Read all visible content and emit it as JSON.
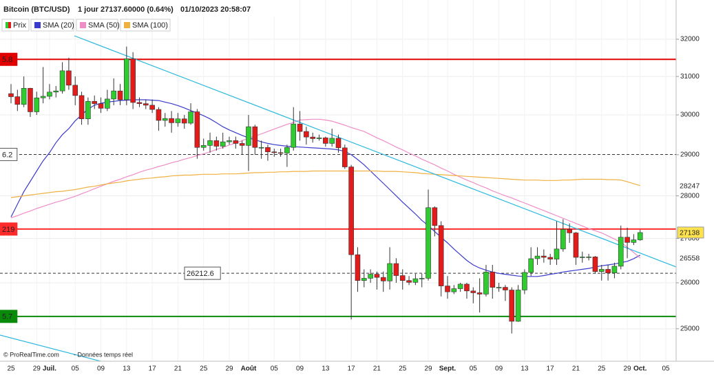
{
  "chart_data": {
    "type": "candlestick",
    "title": "Bitcoin (BTC/USD)",
    "period": "1 jour",
    "last": "27137.60000 (0.64%)",
    "datetime": "01/10/2023 20:58:07",
    "price_name": "Prix",
    "up_color": "#2ecc2e",
    "down_color": "#e21b1b",
    "categories": [
      "25",
      null,
      null,
      null,
      "29",
      null,
      "Juil.",
      null,
      null,
      null,
      "05",
      null,
      null,
      null,
      "09",
      null,
      null,
      null,
      "13",
      null,
      null,
      null,
      "17",
      null,
      null,
      null,
      "21",
      null,
      null,
      null,
      "25",
      null,
      null,
      null,
      "29",
      null,
      null,
      "Août",
      null,
      null,
      null,
      "05",
      null,
      null,
      null,
      "09",
      null,
      null,
      null,
      "13",
      null,
      null,
      null,
      "17",
      null,
      null,
      null,
      "21",
      null,
      null,
      null,
      "25",
      null,
      null,
      null,
      "29",
      null,
      null,
      "Sept.",
      null,
      null,
      null,
      "05",
      null,
      null,
      null,
      "09",
      null,
      null,
      null,
      "13",
      null,
      null,
      null,
      "17",
      null,
      null,
      null,
      "21",
      null,
      null,
      null,
      "25",
      null,
      null,
      null,
      "29",
      null,
      "Oct.",
      null,
      null,
      null,
      "05"
    ],
    "open": [
      30550,
      30470,
      30270,
      30690,
      30080,
      30440,
      30480,
      30590,
      30620,
      31150,
      30770,
      30500,
      29900,
      30350,
      30290,
      30170,
      30410,
      30620,
      30390,
      31470,
      30320,
      30290,
      30250,
      30140,
      29860,
      29910,
      29800,
      29900,
      29790,
      30080,
      29180,
      29230,
      29350,
      29210,
      29320,
      29350,
      29280,
      29230,
      29700,
      29180,
      29180,
      29070,
      29050,
      29040,
      29180,
      29770,
      29580,
      29440,
      29400,
      29420,
      29280,
      29410,
      29170,
      28700,
      26630,
      26050,
      26100,
      26190,
      26120,
      26040,
      26430,
      26160,
      26050,
      26010,
      26090,
      26100,
      27720,
      27300,
      25930,
      25800,
      25870,
      25970,
      25820,
      25780,
      25750,
      26240,
      25900,
      25900,
      25840,
      25160,
      25840,
      26230,
      26540,
      26600,
      26570,
      26530,
      26760,
      27210,
      27130,
      26570,
      26580,
      26580,
      26250,
      26300,
      26220,
      26370,
      27030,
      26910,
      26970,
      null,
      null,
      null,
      null
    ],
    "high": [
      30800,
      30650,
      31000,
      30700,
      30600,
      31250,
      30800,
      30750,
      31380,
      31500,
      31000,
      30600,
      30450,
      30500,
      30450,
      30650,
      30950,
      30800,
      31800,
      31650,
      30450,
      30400,
      30400,
      30200,
      30050,
      30100,
      30050,
      30000,
      30300,
      30150,
      29400,
      29550,
      29450,
      29550,
      29450,
      29450,
      29350,
      30000,
      29750,
      29350,
      29250,
      29150,
      29150,
      29250,
      30200,
      30100,
      29700,
      29550,
      29500,
      29450,
      29650,
      29500,
      29250,
      28750,
      26800,
      26300,
      26300,
      26250,
      26250,
      26800,
      26550,
      26300,
      26150,
      26200,
      26200,
      28150,
      27750,
      27400,
      26150,
      25950,
      26000,
      26000,
      25900,
      26100,
      26400,
      26400,
      26000,
      25950,
      25900,
      25950,
      26300,
      26800,
      26800,
      26750,
      26650,
      27400,
      27450,
      27350,
      27150,
      26700,
      26650,
      26600,
      26400,
      26400,
      26450,
      27300,
      27250,
      27100,
      27200,
      null,
      null,
      null,
      null
    ],
    "low": [
      30300,
      30100,
      30200,
      29950,
      30000,
      30300,
      30400,
      30450,
      30550,
      30650,
      30250,
      29750,
      29750,
      30150,
      30050,
      30100,
      30250,
      30250,
      30250,
      30150,
      30200,
      30150,
      30050,
      29600,
      29700,
      29550,
      29700,
      29650,
      29750,
      28900,
      29100,
      29050,
      29100,
      29150,
      29250,
      29150,
      29000,
      28600,
      29000,
      28900,
      28850,
      28950,
      28950,
      28700,
      29100,
      29350,
      29250,
      29300,
      29350,
      29200,
      29200,
      29050,
      28650,
      25200,
      25800,
      25900,
      26000,
      25850,
      25800,
      25850,
      26000,
      25850,
      25950,
      25950,
      25900,
      26050,
      27050,
      25700,
      25650,
      25750,
      25800,
      25650,
      25550,
      25350,
      25700,
      25650,
      25800,
      25600,
      24900,
      25150,
      25750,
      26150,
      26400,
      26450,
      26400,
      26400,
      26700,
      26900,
      26400,
      26450,
      26500,
      26200,
      26050,
      26050,
      26100,
      26300,
      26550,
      26850,
      26950,
      null,
      null,
      null,
      null
    ],
    "close": [
      30470,
      30270,
      30690,
      30080,
      30440,
      30480,
      30590,
      30620,
      31150,
      30770,
      30500,
      29900,
      30350,
      30290,
      30170,
      30410,
      30620,
      30390,
      31470,
      30320,
      30290,
      30250,
      30140,
      29860,
      29910,
      29800,
      29900,
      29790,
      30080,
      29180,
      29230,
      29350,
      29210,
      29320,
      29350,
      29280,
      29230,
      29700,
      29180,
      29180,
      29070,
      29050,
      29040,
      29180,
      29770,
      29580,
      29440,
      29400,
      29420,
      29280,
      29410,
      29170,
      28700,
      26630,
      26050,
      26100,
      26190,
      26120,
      26040,
      26430,
      26160,
      26050,
      26010,
      26090,
      26100,
      27720,
      27300,
      25930,
      25800,
      25870,
      25970,
      25820,
      25780,
      25750,
      26240,
      25900,
      25900,
      25840,
      25160,
      25840,
      26230,
      26540,
      26600,
      26570,
      26530,
      26760,
      27210,
      27130,
      26570,
      26580,
      26580,
      26250,
      26300,
      26220,
      26370,
      27030,
      26910,
      26970,
      27137.6,
      null,
      null,
      null,
      null
    ],
    "series": [
      {
        "name": "SMA (20)",
        "color": "#3a3acc",
        "values": [
          27500,
          27800,
          28100,
          28350,
          28600,
          28850,
          29050,
          29300,
          29500,
          29650,
          29850,
          30000,
          30150,
          30250,
          30300,
          30330,
          30350,
          30370,
          30380,
          30390,
          30390,
          30390,
          30380,
          30370,
          30330,
          30290,
          30240,
          30180,
          30110,
          30050,
          29980,
          29900,
          29800,
          29700,
          29620,
          29550,
          29480,
          29420,
          29370,
          29320,
          29280,
          29250,
          29230,
          29210,
          29200,
          29190,
          29180,
          29170,
          29160,
          29150,
          29140,
          29120,
          29080,
          29000,
          28880,
          28750,
          28600,
          28450,
          28300,
          28150,
          28000,
          27850,
          27710,
          27570,
          27420,
          27300,
          27160,
          27030,
          26900,
          26760,
          26630,
          26500,
          26400,
          26330,
          26280,
          26240,
          26210,
          26190,
          26170,
          26150,
          26140,
          26140,
          26140,
          26160,
          26190,
          26210,
          26240,
          26260,
          26280,
          26300,
          26320,
          26350,
          26380,
          26400,
          26420,
          26450,
          26480,
          26540,
          26620,
          null,
          null,
          null,
          null
        ]
      },
      {
        "name": "SMA (50)",
        "color": "#f08cc8",
        "values": [
          27480,
          27530,
          27590,
          27640,
          27700,
          27750,
          27800,
          27850,
          27890,
          27940,
          27990,
          28050,
          28110,
          28170,
          28230,
          28290,
          28350,
          28400,
          28460,
          28510,
          28570,
          28620,
          28660,
          28710,
          28750,
          28800,
          28840,
          28890,
          28930,
          28980,
          29020,
          29070,
          29130,
          29180,
          29240,
          29290,
          29350,
          29410,
          29460,
          29520,
          29580,
          29640,
          29700,
          29760,
          29810,
          29870,
          29880,
          29890,
          29890,
          29870,
          29840,
          29790,
          29740,
          29680,
          29630,
          29580,
          29500,
          29420,
          29350,
          29270,
          29190,
          29120,
          29040,
          28970,
          28890,
          28820,
          28750,
          28670,
          28600,
          28520,
          28450,
          28380,
          28320,
          28250,
          28190,
          28120,
          28060,
          28000,
          27950,
          27890,
          27830,
          27770,
          27710,
          27650,
          27590,
          27530,
          27470,
          27410,
          27350,
          27290,
          27230,
          27180,
          27130,
          27060,
          26990,
          26910,
          26800,
          26680,
          26558,
          null,
          null,
          null,
          null
        ]
      },
      {
        "name": "SMA (100)",
        "color": "#f0b040",
        "values": [
          27960,
          27980,
          28000,
          28020,
          28040,
          28060,
          28080,
          28100,
          28110,
          28130,
          28150,
          28180,
          28210,
          28230,
          28260,
          28290,
          28310,
          28330,
          28360,
          28380,
          28400,
          28420,
          28430,
          28450,
          28460,
          28480,
          28490,
          28500,
          28500,
          28510,
          28520,
          28520,
          28520,
          28530,
          28530,
          28530,
          28540,
          28550,
          28560,
          28560,
          28570,
          28570,
          28580,
          28580,
          28590,
          28590,
          28590,
          28600,
          28600,
          28600,
          28600,
          28600,
          28600,
          28600,
          28600,
          28600,
          28600,
          28600,
          28590,
          28590,
          28590,
          28580,
          28570,
          28560,
          28540,
          28530,
          28520,
          28510,
          28500,
          28490,
          28480,
          28470,
          28460,
          28450,
          28440,
          28430,
          28420,
          28410,
          28400,
          28390,
          28380,
          28380,
          28380,
          28370,
          28370,
          28370,
          28380,
          28380,
          28390,
          28400,
          28400,
          28400,
          28400,
          28390,
          28390,
          28380,
          28340,
          28290,
          28247,
          null,
          null,
          null,
          null
        ]
      }
    ],
    "ylim": [
      24318,
      33088
    ],
    "yticks": [
      25000,
      26000,
      27000,
      28000,
      29000,
      30000,
      31000,
      32000
    ],
    "log_scale": true,
    "grid": true,
    "levels": [
      {
        "value": 31455.8,
        "label": "5.8",
        "color": "#e00000",
        "style": "solid"
      },
      {
        "value": 29006.2,
        "label": "6.2",
        "color": "#333333",
        "style": "dashed"
      },
      {
        "value": 27219,
        "label": "219",
        "color": "#ff2a2a",
        "style": "solid"
      },
      {
        "value": 26212.6,
        "label": "26212.6",
        "color": "#333333",
        "style": "dashed"
      },
      {
        "value": 25265.7,
        "label": "5.7",
        "color": "#0a8a0a",
        "style": "solid"
      }
    ],
    "right_labels": [
      {
        "value": 28247,
        "color": "#e0a030"
      },
      {
        "value": 27138,
        "color": "#222222",
        "box": "#ffe34d"
      },
      {
        "value": 26558,
        "color": "#f080c0"
      }
    ],
    "footer": "© ProRealTime.com",
    "footer_note": "- Données temps réel"
  }
}
